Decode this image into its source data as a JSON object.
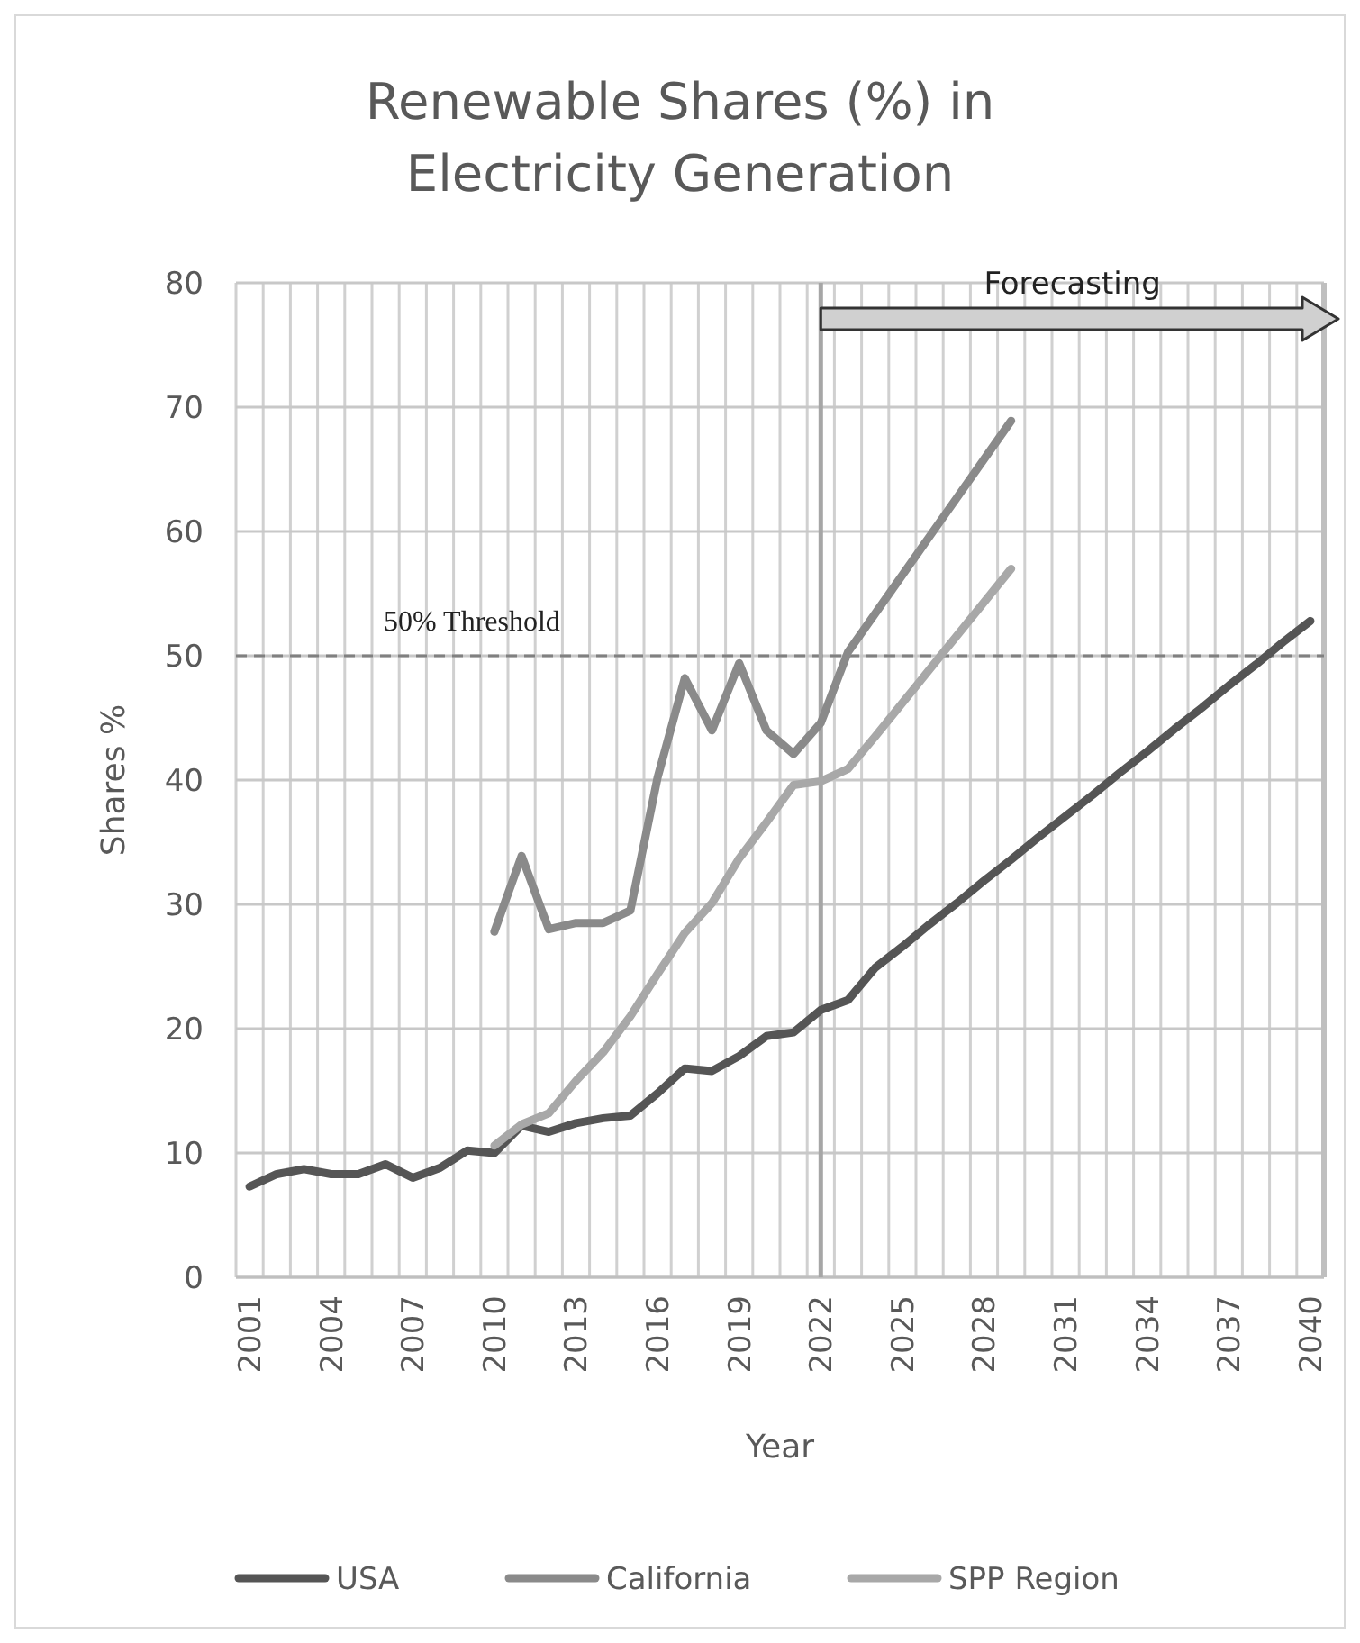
{
  "chart_data": {
    "type": "line",
    "title": "Renewable Shares (%) in Electricity Generation",
    "xlabel": "Year",
    "ylabel": "Shares %",
    "categories": [
      "2001",
      null,
      null,
      "2004",
      null,
      null,
      "2007",
      null,
      null,
      "2010",
      null,
      null,
      "2013",
      null,
      null,
      "2016",
      null,
      null,
      "2019",
      null,
      null,
      "2022",
      null,
      null,
      "2025",
      null,
      null,
      "2028",
      null,
      null,
      "2031",
      null,
      null,
      "2034",
      null,
      null,
      "2037",
      null,
      null,
      "2040"
    ],
    "series": [
      {
        "name": "USA",
        "color": "#555555",
        "values": [
          7.3,
          8.3,
          8.7,
          8.3,
          8.3,
          9.1,
          8.0,
          8.8,
          10.2,
          10.0,
          12.2,
          11.7,
          12.4,
          12.8,
          13.0,
          14.8,
          16.8,
          16.6,
          17.8,
          19.4,
          19.7,
          21.5,
          22.3,
          24.9,
          26.6,
          28.4,
          30.1,
          31.9,
          33.6,
          35.4,
          37.1,
          38.8,
          40.6,
          42.3,
          44.1,
          45.8,
          47.6,
          49.3,
          51.1,
          52.8
        ]
      },
      {
        "name": "California",
        "color": "#8a8a8a",
        "values": [
          null,
          null,
          null,
          null,
          null,
          null,
          null,
          null,
          null,
          27.8,
          33.9,
          28.0,
          28.5,
          28.5,
          29.5,
          40.2,
          48.2,
          44.0,
          49.4,
          44.0,
          42.1,
          44.6,
          50.3,
          53.4,
          56.5,
          59.6,
          62.7,
          65.8,
          68.9,
          null,
          null,
          null,
          null,
          null,
          null,
          null,
          null,
          null,
          null,
          null
        ]
      },
      {
        "name": "SPP Region",
        "color": "#a8a8a8",
        "values": [
          null,
          null,
          null,
          null,
          null,
          null,
          null,
          null,
          null,
          10.6,
          12.3,
          13.2,
          15.8,
          18.1,
          21.0,
          24.4,
          27.7,
          30.1,
          33.7,
          36.6,
          39.6,
          39.9,
          40.9,
          43.5,
          46.2,
          48.9,
          51.6,
          54.3,
          57.0,
          null,
          null,
          null,
          null,
          null,
          null,
          null,
          null,
          null,
          null,
          null
        ]
      }
    ],
    "ylim": [
      0,
      80
    ],
    "yticks": [
      0,
      10,
      20,
      30,
      40,
      50,
      60,
      70,
      80
    ],
    "grid": true,
    "legend": "bottom",
    "line_style": "solid",
    "marker": "none",
    "ref_lines": [
      {
        "axis": "y",
        "value": 50,
        "label": "50% Threshold",
        "color": "#808080",
        "line_style": "dashed"
      },
      {
        "axis": "x",
        "value": "2022",
        "label": null,
        "color": "#a6a6a6",
        "line_style": "solid"
      }
    ],
    "annotations": [
      "Forecasting"
    ]
  }
}
